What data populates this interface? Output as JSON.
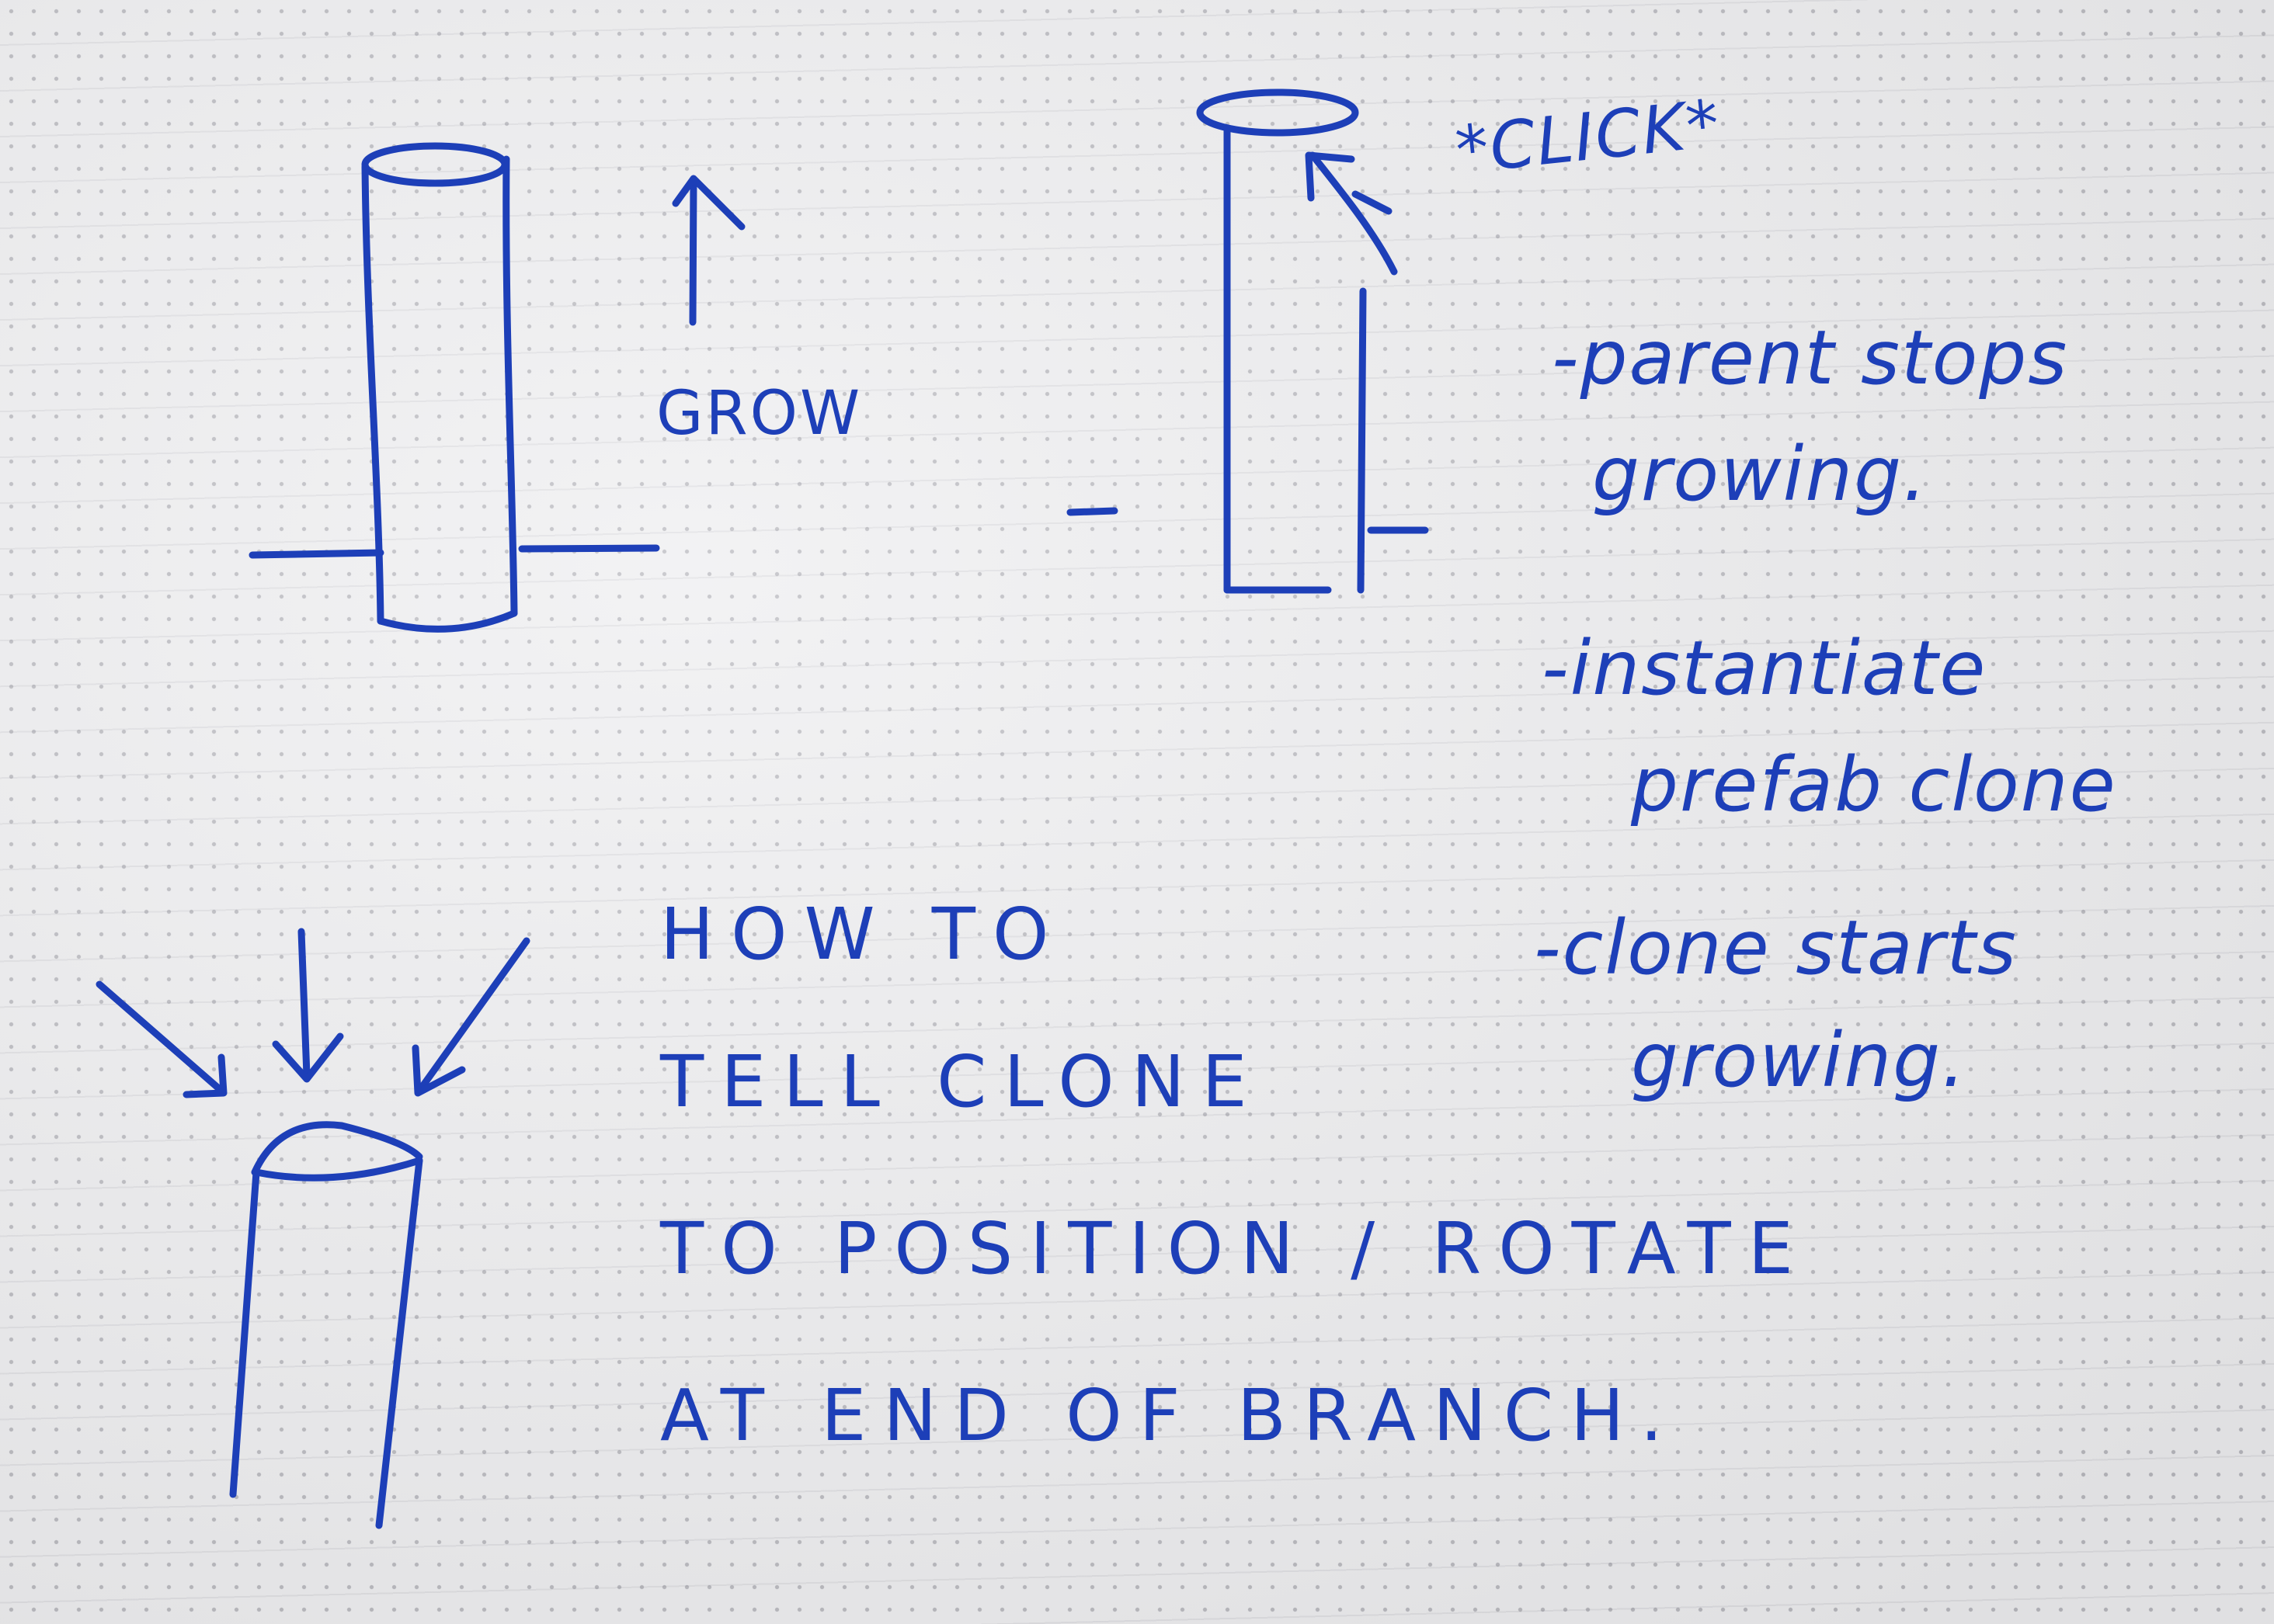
{
  "sketch_1": {
    "label": "GROW"
  },
  "sketch_2": {
    "label": "*CLICK*"
  },
  "notes": [
    "-parent stops",
    "growing.",
    "-instantiate",
    "prefab clone",
    "-clone starts",
    "growing."
  ],
  "question": [
    "HOW TO",
    "TELL CLONE",
    "TO POSITION / ROTATE",
    "AT END OF BRANCH."
  ],
  "colors": {
    "ink": "#1d3fb8",
    "paper": "#eeeef0",
    "dot_grid": "#8a8a94"
  }
}
